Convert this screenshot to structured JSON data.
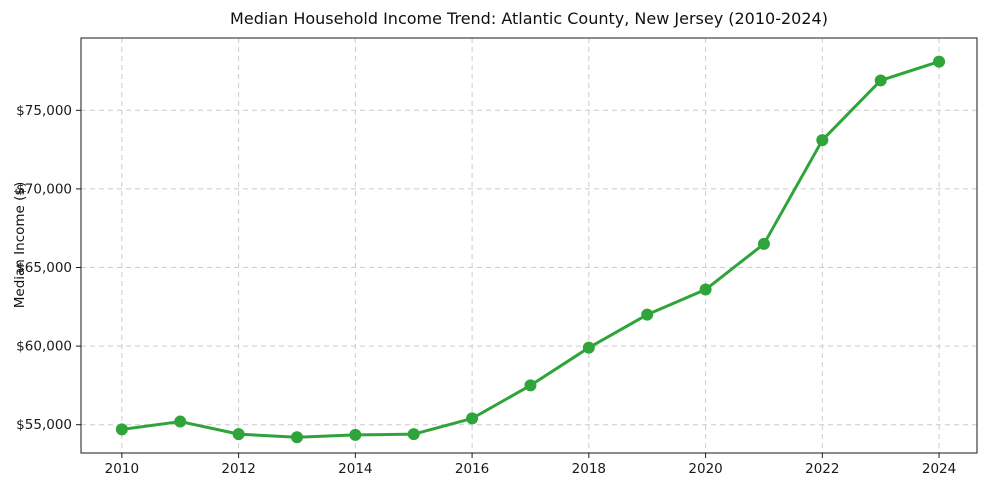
{
  "chart_data": {
    "type": "line",
    "title": "Median Household Income Trend: Atlantic County, New Jersey (2010-2024)",
    "xlabel": "",
    "ylabel": "Median Income ($)",
    "series": [
      {
        "name": "Median household income",
        "x": [
          2010,
          2011,
          2012,
          2013,
          2014,
          2015,
          2016,
          2017,
          2018,
          2019,
          2020,
          2021,
          2022,
          2023,
          2024
        ],
        "y": [
          54700,
          55200,
          54400,
          54200,
          54350,
          54400,
          55400,
          57500,
          59900,
          62000,
          63600,
          66500,
          73100,
          76900,
          78100
        ],
        "color": "#2fa43a",
        "marker": "circle",
        "line_width": 3,
        "marker_size": 12
      }
    ],
    "xticks": {
      "values": [
        2010,
        2012,
        2014,
        2016,
        2018,
        2020,
        2022,
        2024
      ],
      "labels": [
        "2010",
        "2012",
        "2014",
        "2016",
        "2018",
        "2020",
        "2022",
        "2024"
      ]
    },
    "yticks": {
      "values": [
        55000,
        60000,
        65000,
        70000,
        75000
      ],
      "labels": [
        "$55,000",
        "$60,000",
        "$65,000",
        "$70,000",
        "$75,000"
      ]
    },
    "xlim": [
      2009.3,
      2024.65
    ],
    "ylim": [
      53200,
      79600
    ],
    "grid": true,
    "grid_line_style": "dashed",
    "legend": "none",
    "colors": {
      "line": "#2fa43a",
      "grid": "#cccccc",
      "axis": "#1a1a1a",
      "background": "#ffffff"
    }
  }
}
